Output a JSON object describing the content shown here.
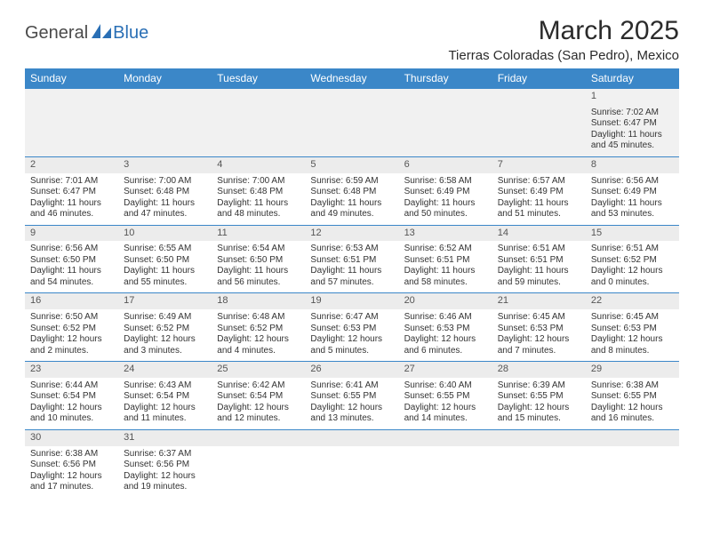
{
  "brand": {
    "text1": "General",
    "text2": "Blue"
  },
  "title": {
    "month": "March 2025",
    "location": "Tierras Coloradas (San Pedro), Mexico"
  },
  "colors": {
    "header_bg": "#3b87c8",
    "header_fg": "#ffffff",
    "daynum_bg": "#ececec",
    "row1_bg": "#f1f1f1",
    "rule": "#3b87c8"
  },
  "dayHeaders": [
    "Sunday",
    "Monday",
    "Tuesday",
    "Wednesday",
    "Thursday",
    "Friday",
    "Saturday"
  ],
  "weeks": [
    [
      null,
      null,
      null,
      null,
      null,
      null,
      {
        "n": "1",
        "sr": "Sunrise: 7:02 AM",
        "ss": "Sunset: 6:47 PM",
        "dl1": "Daylight: 11 hours",
        "dl2": "and 45 minutes."
      }
    ],
    [
      {
        "n": "2",
        "sr": "Sunrise: 7:01 AM",
        "ss": "Sunset: 6:47 PM",
        "dl1": "Daylight: 11 hours",
        "dl2": "and 46 minutes."
      },
      {
        "n": "3",
        "sr": "Sunrise: 7:00 AM",
        "ss": "Sunset: 6:48 PM",
        "dl1": "Daylight: 11 hours",
        "dl2": "and 47 minutes."
      },
      {
        "n": "4",
        "sr": "Sunrise: 7:00 AM",
        "ss": "Sunset: 6:48 PM",
        "dl1": "Daylight: 11 hours",
        "dl2": "and 48 minutes."
      },
      {
        "n": "5",
        "sr": "Sunrise: 6:59 AM",
        "ss": "Sunset: 6:48 PM",
        "dl1": "Daylight: 11 hours",
        "dl2": "and 49 minutes."
      },
      {
        "n": "6",
        "sr": "Sunrise: 6:58 AM",
        "ss": "Sunset: 6:49 PM",
        "dl1": "Daylight: 11 hours",
        "dl2": "and 50 minutes."
      },
      {
        "n": "7",
        "sr": "Sunrise: 6:57 AM",
        "ss": "Sunset: 6:49 PM",
        "dl1": "Daylight: 11 hours",
        "dl2": "and 51 minutes."
      },
      {
        "n": "8",
        "sr": "Sunrise: 6:56 AM",
        "ss": "Sunset: 6:49 PM",
        "dl1": "Daylight: 11 hours",
        "dl2": "and 53 minutes."
      }
    ],
    [
      {
        "n": "9",
        "sr": "Sunrise: 6:56 AM",
        "ss": "Sunset: 6:50 PM",
        "dl1": "Daylight: 11 hours",
        "dl2": "and 54 minutes."
      },
      {
        "n": "10",
        "sr": "Sunrise: 6:55 AM",
        "ss": "Sunset: 6:50 PM",
        "dl1": "Daylight: 11 hours",
        "dl2": "and 55 minutes."
      },
      {
        "n": "11",
        "sr": "Sunrise: 6:54 AM",
        "ss": "Sunset: 6:50 PM",
        "dl1": "Daylight: 11 hours",
        "dl2": "and 56 minutes."
      },
      {
        "n": "12",
        "sr": "Sunrise: 6:53 AM",
        "ss": "Sunset: 6:51 PM",
        "dl1": "Daylight: 11 hours",
        "dl2": "and 57 minutes."
      },
      {
        "n": "13",
        "sr": "Sunrise: 6:52 AM",
        "ss": "Sunset: 6:51 PM",
        "dl1": "Daylight: 11 hours",
        "dl2": "and 58 minutes."
      },
      {
        "n": "14",
        "sr": "Sunrise: 6:51 AM",
        "ss": "Sunset: 6:51 PM",
        "dl1": "Daylight: 11 hours",
        "dl2": "and 59 minutes."
      },
      {
        "n": "15",
        "sr": "Sunrise: 6:51 AM",
        "ss": "Sunset: 6:52 PM",
        "dl1": "Daylight: 12 hours",
        "dl2": "and 0 minutes."
      }
    ],
    [
      {
        "n": "16",
        "sr": "Sunrise: 6:50 AM",
        "ss": "Sunset: 6:52 PM",
        "dl1": "Daylight: 12 hours",
        "dl2": "and 2 minutes."
      },
      {
        "n": "17",
        "sr": "Sunrise: 6:49 AM",
        "ss": "Sunset: 6:52 PM",
        "dl1": "Daylight: 12 hours",
        "dl2": "and 3 minutes."
      },
      {
        "n": "18",
        "sr": "Sunrise: 6:48 AM",
        "ss": "Sunset: 6:52 PM",
        "dl1": "Daylight: 12 hours",
        "dl2": "and 4 minutes."
      },
      {
        "n": "19",
        "sr": "Sunrise: 6:47 AM",
        "ss": "Sunset: 6:53 PM",
        "dl1": "Daylight: 12 hours",
        "dl2": "and 5 minutes."
      },
      {
        "n": "20",
        "sr": "Sunrise: 6:46 AM",
        "ss": "Sunset: 6:53 PM",
        "dl1": "Daylight: 12 hours",
        "dl2": "and 6 minutes."
      },
      {
        "n": "21",
        "sr": "Sunrise: 6:45 AM",
        "ss": "Sunset: 6:53 PM",
        "dl1": "Daylight: 12 hours",
        "dl2": "and 7 minutes."
      },
      {
        "n": "22",
        "sr": "Sunrise: 6:45 AM",
        "ss": "Sunset: 6:53 PM",
        "dl1": "Daylight: 12 hours",
        "dl2": "and 8 minutes."
      }
    ],
    [
      {
        "n": "23",
        "sr": "Sunrise: 6:44 AM",
        "ss": "Sunset: 6:54 PM",
        "dl1": "Daylight: 12 hours",
        "dl2": "and 10 minutes."
      },
      {
        "n": "24",
        "sr": "Sunrise: 6:43 AM",
        "ss": "Sunset: 6:54 PM",
        "dl1": "Daylight: 12 hours",
        "dl2": "and 11 minutes."
      },
      {
        "n": "25",
        "sr": "Sunrise: 6:42 AM",
        "ss": "Sunset: 6:54 PM",
        "dl1": "Daylight: 12 hours",
        "dl2": "and 12 minutes."
      },
      {
        "n": "26",
        "sr": "Sunrise: 6:41 AM",
        "ss": "Sunset: 6:55 PM",
        "dl1": "Daylight: 12 hours",
        "dl2": "and 13 minutes."
      },
      {
        "n": "27",
        "sr": "Sunrise: 6:40 AM",
        "ss": "Sunset: 6:55 PM",
        "dl1": "Daylight: 12 hours",
        "dl2": "and 14 minutes."
      },
      {
        "n": "28",
        "sr": "Sunrise: 6:39 AM",
        "ss": "Sunset: 6:55 PM",
        "dl1": "Daylight: 12 hours",
        "dl2": "and 15 minutes."
      },
      {
        "n": "29",
        "sr": "Sunrise: 6:38 AM",
        "ss": "Sunset: 6:55 PM",
        "dl1": "Daylight: 12 hours",
        "dl2": "and 16 minutes."
      }
    ],
    [
      {
        "n": "30",
        "sr": "Sunrise: 6:38 AM",
        "ss": "Sunset: 6:56 PM",
        "dl1": "Daylight: 12 hours",
        "dl2": "and 17 minutes."
      },
      {
        "n": "31",
        "sr": "Sunrise: 6:37 AM",
        "ss": "Sunset: 6:56 PM",
        "dl1": "Daylight: 12 hours",
        "dl2": "and 19 minutes."
      },
      null,
      null,
      null,
      null,
      null
    ]
  ]
}
